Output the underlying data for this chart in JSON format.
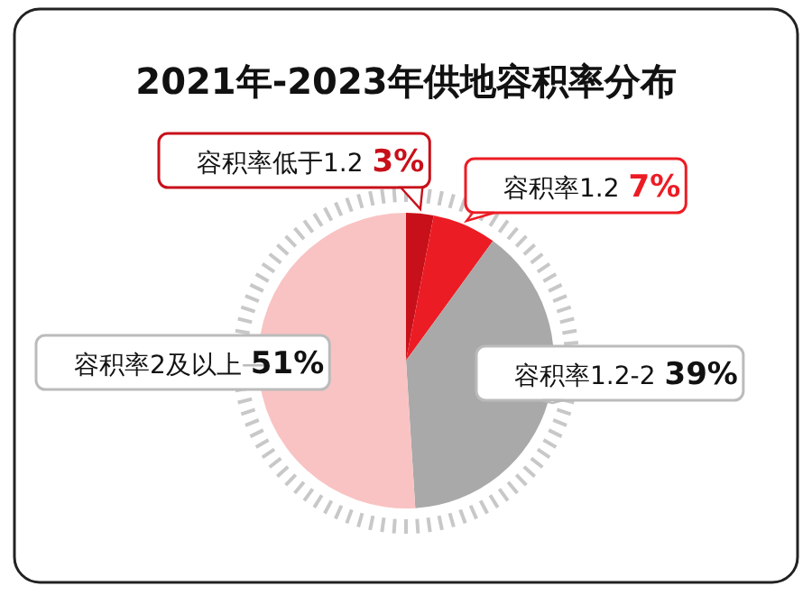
{
  "chart_data": {
    "type": "pie",
    "title": "2021年-2023年供地容积率分布",
    "categories": [
      "容积率低于1.2",
      "容积率1.2",
      "容积率1.2-2",
      "容积率2及以上"
    ],
    "values": [
      3,
      7,
      39,
      51
    ],
    "colors": [
      "#c8101a",
      "#ec1c24",
      "#a9a9a9",
      "#f9c3c3"
    ],
    "value_labels": [
      "3%",
      "7%",
      "39%",
      "51%"
    ]
  }
}
